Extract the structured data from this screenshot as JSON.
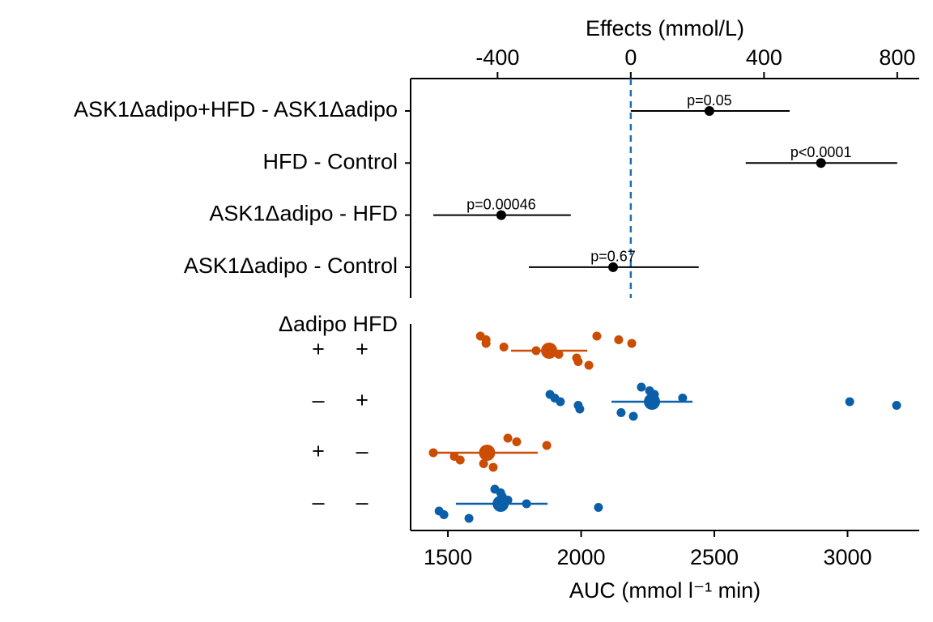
{
  "chart_data": [
    {
      "type": "forest",
      "xlabel": "Effects (mmol/L)",
      "xlim": [
        -661,
        866
      ],
      "xticks": [
        -400,
        0,
        400,
        800
      ],
      "zero_line": 0,
      "zero_color": "#1f6fb2",
      "color": "#000000",
      "categories": [
        "ASK1Δadipo+HFD - ASK1Δadipo",
        "HFD - Control",
        "ASK1Δadipo - HFD",
        "ASK1Δadipo - Control"
      ],
      "values": [
        236,
        571,
        -389,
        -53
      ],
      "lower": [
        0,
        345,
        -593,
        -306
      ],
      "upper": [
        477,
        800,
        -180,
        204
      ],
      "annotations": [
        "p=0.05",
        "p<0.0001",
        "p=0.00046",
        "p=0.67"
      ]
    },
    {
      "type": "strip",
      "xlabel": "AUC (mmol l⁻¹ min)",
      "xlim": [
        1360,
        3269
      ],
      "xticks": [
        1500,
        2000,
        2500,
        3000
      ],
      "factor_labels": [
        "Δadipo HFD"
      ],
      "groups": [
        {
          "adipo": "+",
          "hfd": "+",
          "color": "#cc4c02",
          "values": [
            1622,
            1643,
            1643,
            1710,
            1831,
            1916,
            1983,
            1989,
            2029,
            2059,
            2141,
            2190
          ],
          "mean": 1880,
          "lower": 1737,
          "upper": 2023
        },
        {
          "adipo": "–",
          "hfd": "+",
          "color": "#0a5fa8",
          "values": [
            1883,
            1901,
            1922,
            1989,
            1995,
            2150,
            2196,
            2226,
            2257,
            2275,
            2381,
            3008,
            3184
          ],
          "mean": 2266,
          "lower": 2114,
          "upper": 2418
        },
        {
          "adipo": "+",
          "hfd": "–",
          "color": "#cc4c02",
          "values": [
            1445,
            1524,
            1546,
            1634,
            1670,
            1725,
            1758,
            1871
          ],
          "mean": 1647,
          "lower": 1460,
          "upper": 1837
        },
        {
          "adipo": "–",
          "hfd": "–",
          "color": "#0a5fa8",
          "values": [
            1467,
            1485,
            1579,
            1676,
            1698,
            1704,
            1725,
            1795,
            2065
          ],
          "mean": 1698,
          "lower": 1530,
          "upper": 1874
        }
      ]
    }
  ]
}
